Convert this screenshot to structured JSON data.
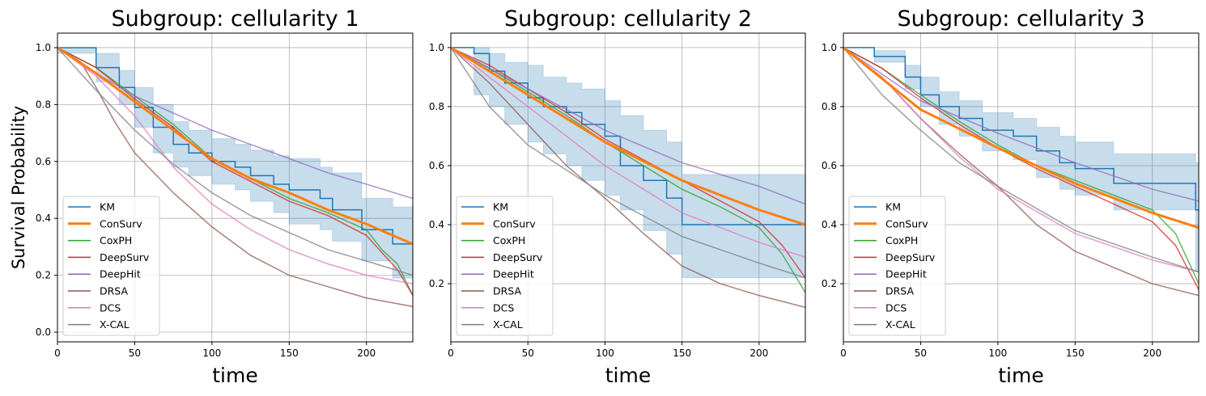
{
  "colors": {
    "KM": "#1f77b4",
    "ConSurv": "#ff7f0e",
    "CoxPH": "#2ca02c",
    "DeepSurv": "#d62728",
    "DeepHit": "#9467bd",
    "DRSA": "#8c564b",
    "DCS": "#e377c2",
    "X-CAL": "#7f7f7f",
    "band": "#1f77b4"
  },
  "chart_data": [
    {
      "type": "line",
      "title": "Subgroup: cellularity 1",
      "xlabel": "time",
      "ylabel": "Survival Probability",
      "xlim": [
        0,
        230
      ],
      "ylim": [
        -0.034,
        1.051
      ],
      "xticks": [
        0,
        50,
        100,
        150,
        200
      ],
      "yticks": [
        "0.0",
        "0.2",
        "0.4",
        "0.6",
        "0.8",
        "1.0"
      ],
      "grid": true,
      "legend": "lower-left",
      "series": [
        {
          "name": "KM",
          "step": true,
          "x": [
            0,
            25,
            40,
            50,
            62,
            75,
            85,
            100,
            115,
            125,
            140,
            150,
            170,
            178,
            197,
            217,
            230
          ],
          "y": [
            1,
            0.93,
            0.86,
            0.79,
            0.72,
            0.66,
            0.63,
            0.6,
            0.58,
            0.55,
            0.52,
            0.5,
            0.47,
            0.43,
            0.36,
            0.31,
            0.31
          ],
          "lower": [
            0.98,
            0.88,
            0.8,
            0.72,
            0.63,
            0.58,
            0.55,
            0.52,
            0.5,
            0.46,
            0.42,
            0.38,
            0.36,
            0.32,
            0.25,
            0.19,
            0.19
          ],
          "upper": [
            1,
            0.98,
            0.92,
            0.86,
            0.8,
            0.74,
            0.71,
            0.68,
            0.66,
            0.64,
            0.62,
            0.61,
            0.58,
            0.56,
            0.47,
            0.44,
            0.44
          ]
        },
        {
          "name": "ConSurv",
          "x": [
            0,
            25,
            50,
            75,
            100,
            125,
            150,
            175,
            200,
            230
          ],
          "y": [
            1,
            0.91,
            0.81,
            0.71,
            0.61,
            0.54,
            0.49,
            0.43,
            0.38,
            0.31
          ]
        },
        {
          "name": "CoxPH",
          "x": [
            0,
            25,
            50,
            75,
            100,
            125,
            150,
            175,
            200,
            210,
            220,
            230
          ],
          "y": [
            1,
            0.93,
            0.83,
            0.73,
            0.61,
            0.54,
            0.47,
            0.42,
            0.36,
            0.29,
            0.24,
            0.13
          ]
        },
        {
          "name": "DeepSurv",
          "x": [
            0,
            25,
            50,
            75,
            100,
            125,
            150,
            175,
            200,
            210,
            220,
            230
          ],
          "y": [
            1,
            0.93,
            0.82,
            0.72,
            0.6,
            0.53,
            0.46,
            0.41,
            0.34,
            0.28,
            0.22,
            0.13
          ]
        },
        {
          "name": "DeepHit",
          "x": [
            0,
            25,
            50,
            75,
            100,
            125,
            150,
            175,
            200,
            230
          ],
          "y": [
            1,
            0.91,
            0.83,
            0.77,
            0.71,
            0.66,
            0.61,
            0.56,
            0.52,
            0.47
          ]
        },
        {
          "name": "DRSA",
          "x": [
            0,
            15,
            25,
            37,
            50,
            75,
            100,
            125,
            150,
            175,
            200,
            230
          ],
          "y": [
            1,
            0.95,
            0.86,
            0.74,
            0.63,
            0.49,
            0.37,
            0.27,
            0.2,
            0.16,
            0.12,
            0.09
          ]
        },
        {
          "name": "DCS",
          "x": [
            0,
            25,
            50,
            75,
            100,
            125,
            150,
            175,
            200,
            230
          ],
          "y": [
            1,
            0.9,
            0.76,
            0.58,
            0.45,
            0.36,
            0.29,
            0.24,
            0.2,
            0.17
          ]
        },
        {
          "name": "X-CAL",
          "x": [
            0,
            25,
            50,
            75,
            100,
            125,
            150,
            175,
            200,
            230
          ],
          "y": [
            1,
            0.85,
            0.71,
            0.59,
            0.49,
            0.41,
            0.35,
            0.29,
            0.25,
            0.2
          ]
        }
      ]
    },
    {
      "type": "line",
      "title": "Subgroup: cellularity 2",
      "xlabel": "time",
      "ylabel": "",
      "xlim": [
        0,
        230
      ],
      "ylim": [
        0.003,
        1.049
      ],
      "xticks": [
        0,
        50,
        100,
        150,
        200
      ],
      "yticks": [
        "0.2",
        "0.4",
        "0.6",
        "0.8",
        "1.0"
      ],
      "grid": true,
      "legend": "lower-left",
      "series": [
        {
          "name": "KM",
          "step": true,
          "x": [
            0,
            15,
            25,
            35,
            50,
            60,
            75,
            85,
            100,
            110,
            125,
            140,
            150,
            230
          ],
          "y": [
            1,
            0.98,
            0.92,
            0.88,
            0.83,
            0.8,
            0.78,
            0.74,
            0.7,
            0.6,
            0.55,
            0.49,
            0.4,
            0.4
          ],
          "lower": [
            1,
            0.84,
            0.8,
            0.74,
            0.68,
            0.64,
            0.6,
            0.55,
            0.5,
            0.45,
            0.38,
            0.3,
            0.22,
            0.22
          ],
          "upper": [
            1,
            1,
            0.98,
            0.95,
            0.94,
            0.9,
            0.88,
            0.86,
            0.82,
            0.77,
            0.72,
            0.68,
            0.57,
            0.57
          ]
        },
        {
          "name": "ConSurv",
          "x": [
            0,
            50,
            100,
            150,
            200,
            230
          ],
          "y": [
            1,
            0.84,
            0.68,
            0.55,
            0.45,
            0.4
          ]
        },
        {
          "name": "CoxPH",
          "x": [
            0,
            25,
            50,
            75,
            100,
            125,
            150,
            175,
            200,
            215,
            230
          ],
          "y": [
            1,
            0.93,
            0.85,
            0.77,
            0.68,
            0.6,
            0.52,
            0.46,
            0.39,
            0.3,
            0.17
          ]
        },
        {
          "name": "DeepSurv",
          "x": [
            0,
            25,
            50,
            75,
            100,
            125,
            150,
            175,
            200,
            215,
            230
          ],
          "y": [
            1,
            0.94,
            0.86,
            0.78,
            0.69,
            0.62,
            0.55,
            0.48,
            0.41,
            0.33,
            0.22
          ]
        },
        {
          "name": "DeepHit",
          "x": [
            0,
            50,
            100,
            150,
            200,
            230
          ],
          "y": [
            1,
            0.86,
            0.72,
            0.61,
            0.53,
            0.47
          ]
        },
        {
          "name": "DRSA",
          "x": [
            0,
            25,
            50,
            75,
            100,
            125,
            150,
            175,
            200,
            230
          ],
          "y": [
            1,
            0.88,
            0.74,
            0.6,
            0.49,
            0.37,
            0.26,
            0.2,
            0.16,
            0.12
          ]
        },
        {
          "name": "DCS",
          "x": [
            0,
            50,
            100,
            150,
            200,
            230
          ],
          "y": [
            1,
            0.8,
            0.6,
            0.44,
            0.34,
            0.29
          ]
        },
        {
          "name": "X-CAL",
          "x": [
            0,
            25,
            50,
            100,
            150,
            200,
            230
          ],
          "y": [
            1,
            0.8,
            0.67,
            0.5,
            0.36,
            0.27,
            0.22
          ]
        }
      ]
    },
    {
      "type": "line",
      "title": "Subgroup: cellularity 3",
      "xlabel": "time",
      "ylabel": "",
      "xlim": [
        0,
        230
      ],
      "ylim": [
        0.003,
        1.049
      ],
      "xticks": [
        0,
        50,
        100,
        150,
        200
      ],
      "yticks": [
        "0.2",
        "0.4",
        "0.6",
        "0.8",
        "1.0"
      ],
      "grid": true,
      "legend": "lower-left",
      "series": [
        {
          "name": "KM",
          "step": true,
          "x": [
            0,
            20,
            40,
            50,
            62,
            75,
            90,
            110,
            125,
            140,
            150,
            175,
            228,
            230
          ],
          "y": [
            1,
            0.97,
            0.9,
            0.84,
            0.8,
            0.76,
            0.72,
            0.7,
            0.65,
            0.61,
            0.59,
            0.54,
            0.45,
            0.45
          ],
          "lower": [
            1,
            0.95,
            0.86,
            0.8,
            0.74,
            0.7,
            0.65,
            0.62,
            0.56,
            0.52,
            0.5,
            0.45,
            0.24,
            0.24
          ],
          "upper": [
            1,
            0.99,
            0.94,
            0.9,
            0.85,
            0.82,
            0.78,
            0.76,
            0.73,
            0.7,
            0.68,
            0.64,
            0.61,
            0.61
          ]
        },
        {
          "name": "ConSurv",
          "x": [
            0,
            50,
            100,
            150,
            200,
            230
          ],
          "y": [
            1,
            0.79,
            0.66,
            0.54,
            0.44,
            0.39
          ]
        },
        {
          "name": "CoxPH",
          "x": [
            0,
            25,
            50,
            75,
            100,
            125,
            150,
            175,
            200,
            215,
            230
          ],
          "y": [
            1,
            0.93,
            0.84,
            0.75,
            0.67,
            0.6,
            0.55,
            0.5,
            0.45,
            0.37,
            0.2
          ]
        },
        {
          "name": "DeepSurv",
          "x": [
            0,
            25,
            50,
            75,
            100,
            125,
            150,
            175,
            200,
            215,
            230
          ],
          "y": [
            1,
            0.93,
            0.83,
            0.74,
            0.66,
            0.59,
            0.53,
            0.47,
            0.41,
            0.33,
            0.18
          ]
        },
        {
          "name": "DeepHit",
          "x": [
            0,
            50,
            100,
            150,
            200,
            230
          ],
          "y": [
            1,
            0.82,
            0.71,
            0.61,
            0.52,
            0.48
          ]
        },
        {
          "name": "DRSA",
          "x": [
            0,
            25,
            50,
            75,
            100,
            125,
            150,
            200,
            230
          ],
          "y": [
            1,
            0.9,
            0.76,
            0.64,
            0.53,
            0.4,
            0.31,
            0.2,
            0.16
          ]
        },
        {
          "name": "DCS",
          "x": [
            0,
            25,
            50,
            75,
            100,
            150,
            200,
            230
          ],
          "y": [
            1,
            0.9,
            0.76,
            0.63,
            0.52,
            0.37,
            0.28,
            0.24
          ]
        },
        {
          "name": "X-CAL",
          "x": [
            0,
            25,
            50,
            75,
            100,
            150,
            200,
            230
          ],
          "y": [
            1,
            0.84,
            0.72,
            0.61,
            0.53,
            0.38,
            0.29,
            0.24
          ]
        }
      ]
    }
  ]
}
